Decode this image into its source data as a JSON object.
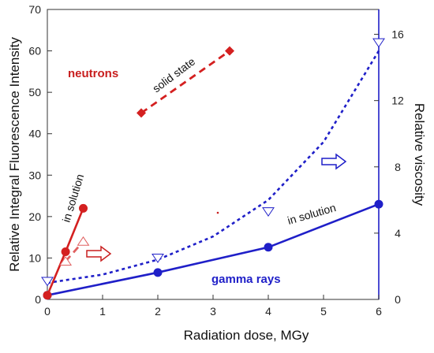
{
  "chart_data": {
    "type": "scatter",
    "xlabel": "Radiation dose, MGy",
    "ylabel": "Relative Integral Fluorescence Intensity",
    "y2label": "Relative viscosity",
    "xlim": [
      0,
      6
    ],
    "ylim": [
      0,
      70
    ],
    "y2lim": [
      0,
      17.5
    ],
    "xticks": [
      "0",
      "1",
      "2",
      "3",
      "4",
      "5",
      "6"
    ],
    "yticks": [
      "0",
      "10",
      "20",
      "30",
      "40",
      "50",
      "60",
      "70"
    ],
    "y2ticks": [
      "0",
      "4",
      "8",
      "12",
      "16"
    ],
    "grid": false,
    "series": [
      {
        "label": "gamma rays, in solution (fluorescence)",
        "axis": "left",
        "marker": "circle",
        "line": "solid",
        "color": "#1f1fc8",
        "x": [
          0,
          2,
          4,
          6
        ],
        "y": [
          1,
          6.5,
          12.6,
          23
        ]
      },
      {
        "label": "gamma rays (viscosity)",
        "axis": "right",
        "marker": "open-triangle-down",
        "line": "dotted-fit",
        "color": "#1f1fc8",
        "x": [
          0,
          2,
          4,
          6
        ],
        "y": [
          1.1,
          2.5,
          5.3,
          15.5
        ],
        "fit_x": [
          0,
          1,
          2,
          3,
          4,
          5,
          6
        ],
        "fit_y": [
          1.0,
          1.5,
          2.4,
          3.8,
          6.0,
          9.5,
          15.0
        ]
      },
      {
        "label": "neutrons, in solution (fluorescence)",
        "axis": "left",
        "marker": "circle",
        "line": "solid",
        "color": "#d42020",
        "x": [
          0,
          0.33,
          0.65
        ],
        "y": [
          1,
          11.5,
          22
        ]
      },
      {
        "label": "neutrons (viscosity)",
        "axis": "right",
        "marker": "open-triangle-up",
        "line": "dashed",
        "color": "#e06060",
        "x": [
          0.33,
          0.65
        ],
        "y": [
          2.3,
          3.5
        ]
      },
      {
        "label": "neutrons, solid state (fluorescence)",
        "axis": "left",
        "marker": "diamond",
        "line": "dashed",
        "color": "#d42020",
        "x": [
          1.7,
          3.3
        ],
        "y": [
          45,
          60
        ]
      }
    ],
    "annotations": {
      "neutrons": "neutrons",
      "solid_state": "solid state",
      "in_solution_red": "in solution",
      "in_solution_blue": "in solution",
      "gamma_rays": "gamma rays"
    }
  }
}
